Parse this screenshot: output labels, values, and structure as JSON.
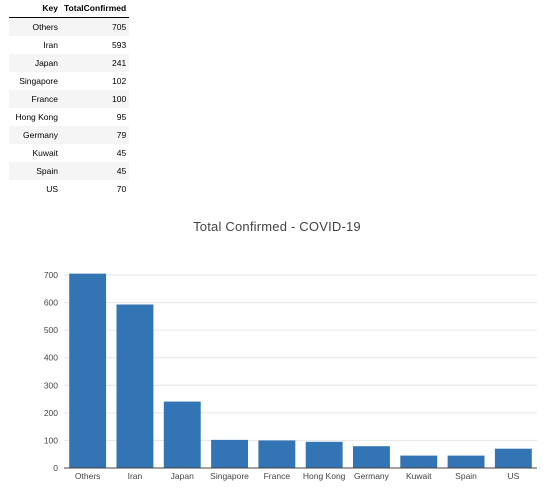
{
  "table": {
    "headers": [
      "Key",
      "TotalConfirmed"
    ],
    "rows": [
      {
        "key": "Others",
        "value": "705"
      },
      {
        "key": "Iran",
        "value": "593"
      },
      {
        "key": "Japan",
        "value": "241"
      },
      {
        "key": "Singapore",
        "value": "102"
      },
      {
        "key": "France",
        "value": "100"
      },
      {
        "key": "Hong Kong",
        "value": "95"
      },
      {
        "key": "Germany",
        "value": "79"
      },
      {
        "key": "Kuwait",
        "value": "45"
      },
      {
        "key": "Spain",
        "value": "45"
      },
      {
        "key": "US",
        "value": "70"
      }
    ]
  },
  "chart_data": {
    "type": "bar",
    "title": "Total Confirmed - COVID-19",
    "xlabel": "",
    "ylabel": "",
    "categories": [
      "Others",
      "Iran",
      "Japan",
      "Singapore",
      "France",
      "Hong Kong",
      "Germany",
      "Kuwait",
      "Spain",
      "US"
    ],
    "values": [
      705,
      593,
      241,
      102,
      100,
      95,
      79,
      45,
      45,
      70
    ],
    "ylim": [
      0,
      700
    ],
    "yticks": [
      "0",
      "100",
      "200",
      "300",
      "400",
      "500",
      "600",
      "700"
    ],
    "grid": true,
    "bar_color": "#3274b4",
    "grid_color": "#e6e6e6"
  }
}
